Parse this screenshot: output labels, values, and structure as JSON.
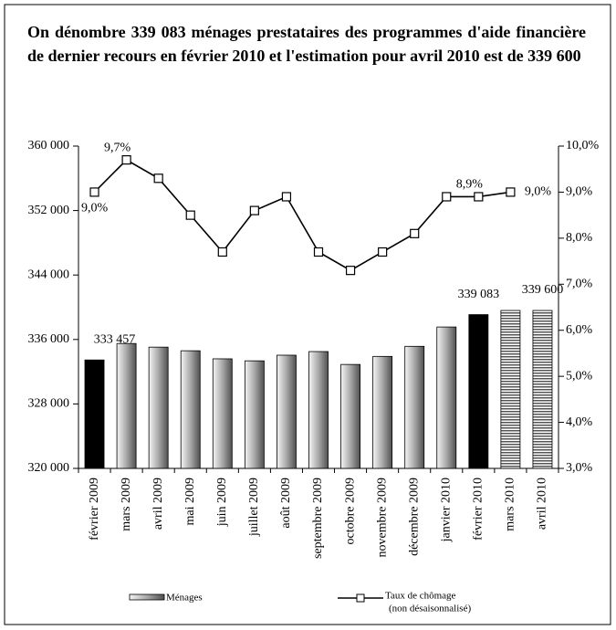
{
  "chart_data": {
    "type": "bar_line",
    "title": "On dénombre 339 083 ménages prestataires des programmes d'aide financière de dernier recours en février 2010 et l'estimation pour avril 2010 est de 339 600",
    "categories": [
      "février 2009",
      "mars 2009",
      "avril 2009",
      "mai 2009",
      "juin 2009",
      "juillet 2009",
      "août 2009",
      "septembre 2009",
      "octobre 2009",
      "novembre 2009",
      "décembre 2009",
      "janvier 2010",
      "février 2010",
      "mars 2010",
      "avril 2010"
    ],
    "series": [
      {
        "name": "Ménages",
        "color": "#808080",
        "highlight_color": "#000000",
        "bar_styles": [
          "highlight",
          "gradient",
          "gradient",
          "gradient",
          "gradient",
          "gradient",
          "gradient",
          "gradient",
          "gradient",
          "gradient",
          "gradient",
          "gradient",
          "highlight",
          "striped",
          "striped"
        ],
        "values": [
          333457,
          335500,
          335050,
          334600,
          333600,
          333350,
          334050,
          334500,
          332900,
          333900,
          335150,
          337550,
          339083,
          339600,
          339600
        ],
        "value_labels": [
          "333 457",
          null,
          null,
          null,
          null,
          null,
          null,
          null,
          null,
          null,
          null,
          null,
          "339 083",
          null,
          "339 600"
        ]
      },
      {
        "name": "Taux de chômage",
        "note": "(non désaisonnalisé)",
        "color": "#000000",
        "axis": "y2",
        "values": [
          9.0,
          9.7,
          9.3,
          8.5,
          7.7,
          8.6,
          8.9,
          7.7,
          7.3,
          7.7,
          8.1,
          8.9,
          8.9,
          9.0,
          null
        ],
        "value_labels": [
          "9,0%",
          "9,7%",
          null,
          null,
          null,
          null,
          null,
          null,
          null,
          null,
          null,
          null,
          "8,9%",
          "9,0%",
          null
        ]
      }
    ],
    "ylim": [
      320000,
      360000
    ],
    "yticks": [
      {
        "value": 320000,
        "label": "320 000"
      },
      {
        "value": 328000,
        "label": "328 000"
      },
      {
        "value": 336000,
        "label": "336 000"
      },
      {
        "value": 344000,
        "label": "344 000"
      },
      {
        "value": 352000,
        "label": "352 000"
      },
      {
        "value": 360000,
        "label": "360 000"
      }
    ],
    "y2lim": [
      3,
      10
    ],
    "y2ticks": [
      {
        "value": 3,
        "label": "3,0%"
      },
      {
        "value": 4,
        "label": "4,0%"
      },
      {
        "value": 5,
        "label": "5,0%"
      },
      {
        "value": 6,
        "label": "6,0%"
      },
      {
        "value": 7,
        "label": "7,0%"
      },
      {
        "value": 8,
        "label": "8,0%"
      },
      {
        "value": 9,
        "label": "9,0%"
      },
      {
        "value": 10,
        "label": "10,0%"
      }
    ]
  }
}
